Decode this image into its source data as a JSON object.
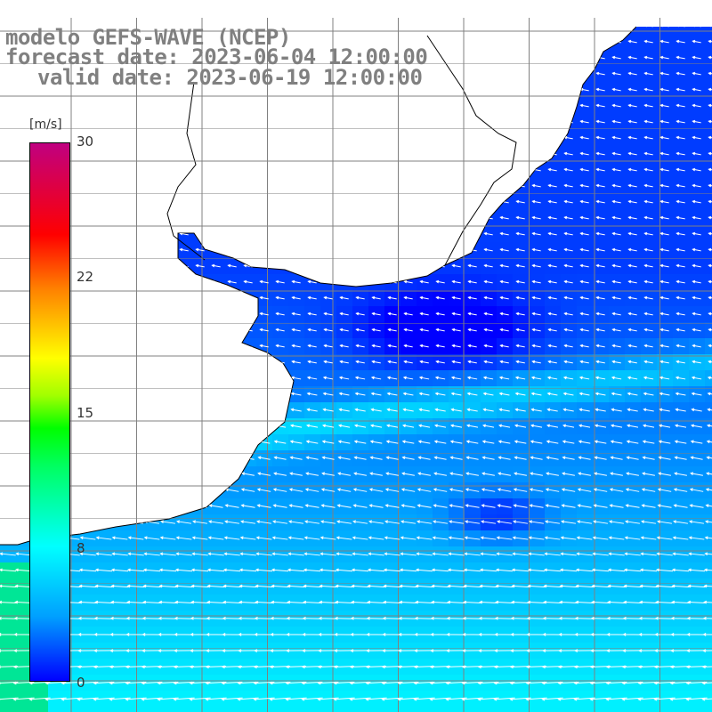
{
  "header": {
    "model": "modelo GEFS-WAVE (NCEP)",
    "forecast": "forecast date: 2023-06-04 12:00:00",
    "valid": "valid date: 2023-06-19 12:00:00"
  },
  "colorbar": {
    "unit": "[m/s]",
    "min": 0,
    "max": 30,
    "ticks": [
      "30",
      "22",
      "15",
      "8",
      "0"
    ],
    "colors": [
      "#0000ff",
      "#00a0ff",
      "#00ffff",
      "#00ff00",
      "#ffff00",
      "#ff8000",
      "#ff0000",
      "#c00080"
    ]
  },
  "map": {
    "background": "#ffffff",
    "coastline_color": "#000000",
    "grid_color": "#808080",
    "arrow_color": "#ffffff",
    "field": "wind speed with wind direction arrows"
  }
}
